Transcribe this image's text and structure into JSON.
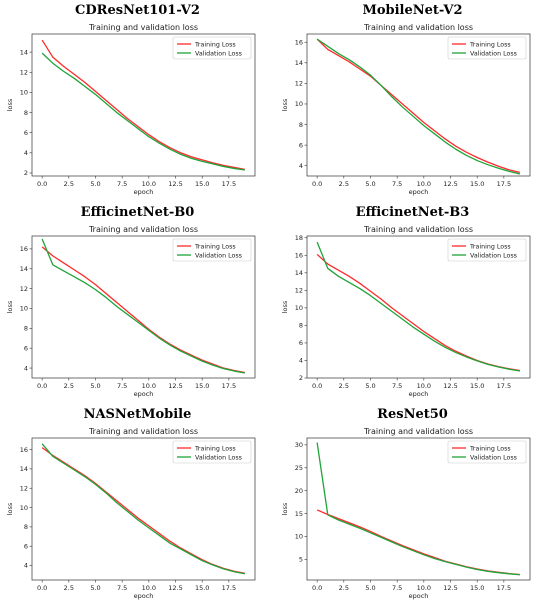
{
  "chart_data": [
    {
      "type": "line",
      "heading": "CDResNet101-V2",
      "title": "Training and validation loss",
      "xlabel": "epoch",
      "ylabel": "loss",
      "xlim": [
        -0.95,
        19.95
      ],
      "ylim": [
        1.7,
        15.8
      ],
      "xticks": [
        0.0,
        2.5,
        5.0,
        7.5,
        10.0,
        12.5,
        15.0,
        17.5
      ],
      "yticks": [
        2,
        4,
        6,
        8,
        10,
        12,
        14
      ],
      "legend_position": "top-right",
      "series": [
        {
          "name": "Training Loss",
          "color": "#ff2a2a",
          "x": [
            0,
            1,
            2,
            3,
            4,
            5,
            6,
            7,
            8,
            9,
            10,
            11,
            12,
            13,
            14,
            15,
            16,
            17,
            18,
            19
          ],
          "y": [
            15.2,
            13.5,
            12.6,
            11.8,
            11.0,
            10.1,
            9.2,
            8.3,
            7.4,
            6.6,
            5.8,
            5.1,
            4.5,
            4.0,
            3.6,
            3.3,
            3.0,
            2.75,
            2.55,
            2.35
          ]
        },
        {
          "name": "Validation Loss",
          "color": "#1fa43a",
          "x": [
            0,
            1,
            2,
            3,
            4,
            5,
            6,
            7,
            8,
            9,
            10,
            11,
            12,
            13,
            14,
            15,
            16,
            17,
            18,
            19
          ],
          "y": [
            13.9,
            12.9,
            12.1,
            11.4,
            10.6,
            9.8,
            8.9,
            8.0,
            7.2,
            6.4,
            5.6,
            4.95,
            4.35,
            3.85,
            3.45,
            3.15,
            2.9,
            2.65,
            2.45,
            2.3
          ]
        }
      ]
    },
    {
      "type": "line",
      "heading": "MobileNet-V2",
      "title": "Training and validation loss",
      "xlabel": "epoch",
      "ylabel": "loss",
      "xlim": [
        -0.95,
        19.95
      ],
      "ylim": [
        3.0,
        16.8
      ],
      "xticks": [
        0.0,
        2.5,
        5.0,
        7.5,
        10.0,
        12.5,
        15.0,
        17.5
      ],
      "yticks": [
        4,
        6,
        8,
        10,
        12,
        14,
        16
      ],
      "legend_position": "top-right",
      "series": [
        {
          "name": "Training Loss",
          "color": "#ff2a2a",
          "x": [
            0,
            1,
            2,
            3,
            4,
            5,
            6,
            7,
            8,
            9,
            10,
            11,
            12,
            13,
            14,
            15,
            16,
            17,
            18,
            19
          ],
          "y": [
            16.3,
            15.3,
            14.7,
            14.1,
            13.4,
            12.7,
            11.8,
            10.9,
            10.0,
            9.1,
            8.2,
            7.4,
            6.6,
            5.9,
            5.3,
            4.8,
            4.35,
            3.95,
            3.6,
            3.35
          ]
        },
        {
          "name": "Validation Loss",
          "color": "#1fa43a",
          "x": [
            0,
            1,
            2,
            3,
            4,
            5,
            6,
            7,
            8,
            9,
            10,
            11,
            12,
            13,
            14,
            15,
            16,
            17,
            18,
            19
          ],
          "y": [
            16.3,
            15.6,
            14.9,
            14.3,
            13.6,
            12.8,
            11.8,
            10.7,
            9.7,
            8.8,
            7.9,
            7.1,
            6.3,
            5.6,
            5.0,
            4.5,
            4.1,
            3.75,
            3.45,
            3.2
          ]
        }
      ]
    },
    {
      "type": "line",
      "heading": "EfficinetNet-B0",
      "title": "Training and validation loss",
      "xlabel": "epoch",
      "ylabel": "loss",
      "xlim": [
        -0.95,
        19.95
      ],
      "ylim": [
        3.0,
        17.3
      ],
      "xticks": [
        0.0,
        2.5,
        5.0,
        7.5,
        10.0,
        12.5,
        15.0,
        17.5
      ],
      "yticks": [
        4,
        6,
        8,
        10,
        12,
        14,
        16
      ],
      "legend_position": "top-right",
      "series": [
        {
          "name": "Training Loss",
          "color": "#ff2a2a",
          "x": [
            0,
            1,
            2,
            3,
            4,
            5,
            6,
            7,
            8,
            9,
            10,
            11,
            12,
            13,
            14,
            15,
            16,
            17,
            18,
            19
          ],
          "y": [
            16.2,
            15.3,
            14.6,
            13.9,
            13.2,
            12.4,
            11.5,
            10.6,
            9.7,
            8.8,
            7.9,
            7.1,
            6.4,
            5.8,
            5.3,
            4.8,
            4.4,
            4.0,
            3.75,
            3.55
          ]
        },
        {
          "name": "Validation Loss",
          "color": "#1fa43a",
          "x": [
            0,
            1,
            2,
            3,
            4,
            5,
            6,
            7,
            8,
            9,
            10,
            11,
            12,
            13,
            14,
            15,
            16,
            17,
            18,
            19
          ],
          "y": [
            17.0,
            14.4,
            13.8,
            13.2,
            12.6,
            11.9,
            11.1,
            10.2,
            9.4,
            8.6,
            7.8,
            7.0,
            6.3,
            5.7,
            5.2,
            4.7,
            4.3,
            3.95,
            3.7,
            3.5
          ]
        }
      ]
    },
    {
      "type": "line",
      "heading": "EfficinetNet-B3",
      "title": "Training and validation loss",
      "xlabel": "epoch",
      "ylabel": "loss",
      "xlim": [
        -0.95,
        19.95
      ],
      "ylim": [
        2.0,
        18.2
      ],
      "xticks": [
        0.0,
        2.5,
        5.0,
        7.5,
        10.0,
        12.5,
        15.0,
        17.5
      ],
      "yticks": [
        2,
        4,
        6,
        8,
        10,
        12,
        14,
        16,
        18
      ],
      "legend_position": "top-right",
      "series": [
        {
          "name": "Training Loss",
          "color": "#ff2a2a",
          "x": [
            0,
            1,
            2,
            3,
            4,
            5,
            6,
            7,
            8,
            9,
            10,
            11,
            12,
            13,
            14,
            15,
            16,
            17,
            18,
            19
          ],
          "y": [
            16.1,
            15.0,
            14.3,
            13.6,
            12.8,
            11.9,
            11.0,
            10.0,
            9.1,
            8.2,
            7.3,
            6.5,
            5.7,
            5.05,
            4.5,
            4.0,
            3.6,
            3.3,
            3.05,
            2.85
          ]
        },
        {
          "name": "Validation Loss",
          "color": "#1fa43a",
          "x": [
            0,
            1,
            2,
            3,
            4,
            5,
            6,
            7,
            8,
            9,
            10,
            11,
            12,
            13,
            14,
            15,
            16,
            17,
            18,
            19
          ],
          "y": [
            17.5,
            14.5,
            13.6,
            12.9,
            12.2,
            11.4,
            10.5,
            9.6,
            8.7,
            7.8,
            7.0,
            6.2,
            5.5,
            4.9,
            4.4,
            3.95,
            3.55,
            3.25,
            3.0,
            2.8
          ]
        }
      ]
    },
    {
      "type": "line",
      "heading": "NASNetMobile",
      "title": "Training and validation loss",
      "xlabel": "epoch",
      "ylabel": "loss",
      "xlim": [
        -0.95,
        19.95
      ],
      "ylim": [
        2.5,
        17.2
      ],
      "xticks": [
        0.0,
        2.5,
        5.0,
        7.5,
        10.0,
        12.5,
        15.0,
        17.5
      ],
      "yticks": [
        4,
        6,
        8,
        10,
        12,
        14,
        16
      ],
      "legend_position": "top-right",
      "series": [
        {
          "name": "Training Loss",
          "color": "#ff2a2a",
          "x": [
            0,
            1,
            2,
            3,
            4,
            5,
            6,
            7,
            8,
            9,
            10,
            11,
            12,
            13,
            14,
            15,
            16,
            17,
            18,
            19
          ],
          "y": [
            16.2,
            15.4,
            14.7,
            14.0,
            13.3,
            12.5,
            11.6,
            10.7,
            9.8,
            8.9,
            8.1,
            7.3,
            6.5,
            5.8,
            5.2,
            4.6,
            4.1,
            3.7,
            3.4,
            3.2
          ]
        },
        {
          "name": "Validation Loss",
          "color": "#1fa43a",
          "x": [
            0,
            1,
            2,
            3,
            4,
            5,
            6,
            7,
            8,
            9,
            10,
            11,
            12,
            13,
            14,
            15,
            16,
            17,
            18,
            19
          ],
          "y": [
            16.6,
            15.3,
            14.6,
            13.9,
            13.2,
            12.4,
            11.5,
            10.5,
            9.6,
            8.7,
            7.9,
            7.1,
            6.3,
            5.7,
            5.1,
            4.5,
            4.05,
            3.65,
            3.35,
            3.15
          ]
        }
      ]
    },
    {
      "type": "line",
      "heading": "ResNet50",
      "title": "Training and validation loss",
      "xlabel": "epoch",
      "ylabel": "loss",
      "xlim": [
        -0.95,
        19.95
      ],
      "ylim": [
        0.5,
        31.5
      ],
      "xticks": [
        0.0,
        2.5,
        5.0,
        7.5,
        10.0,
        12.5,
        15.0,
        17.5
      ],
      "yticks": [
        5,
        10,
        15,
        20,
        25,
        30
      ],
      "legend_position": "top-right",
      "series": [
        {
          "name": "Training Loss",
          "color": "#ff2a2a",
          "x": [
            0,
            1,
            2,
            3,
            4,
            5,
            6,
            7,
            8,
            9,
            10,
            11,
            12,
            13,
            14,
            15,
            16,
            17,
            18,
            19
          ],
          "y": [
            15.8,
            14.8,
            13.9,
            13.0,
            12.1,
            11.1,
            10.0,
            9.0,
            8.0,
            7.1,
            6.2,
            5.4,
            4.6,
            4.0,
            3.4,
            2.9,
            2.5,
            2.2,
            1.9,
            1.7
          ]
        },
        {
          "name": "Validation Loss",
          "color": "#1fa43a",
          "x": [
            0,
            1,
            2,
            3,
            4,
            5,
            6,
            7,
            8,
            9,
            10,
            11,
            12,
            13,
            14,
            15,
            16,
            17,
            18,
            19
          ],
          "y": [
            30.5,
            14.7,
            13.6,
            12.7,
            11.8,
            10.8,
            9.8,
            8.8,
            7.8,
            6.9,
            6.0,
            5.2,
            4.5,
            3.9,
            3.3,
            2.8,
            2.4,
            2.1,
            1.85,
            1.65
          ]
        }
      ]
    }
  ]
}
